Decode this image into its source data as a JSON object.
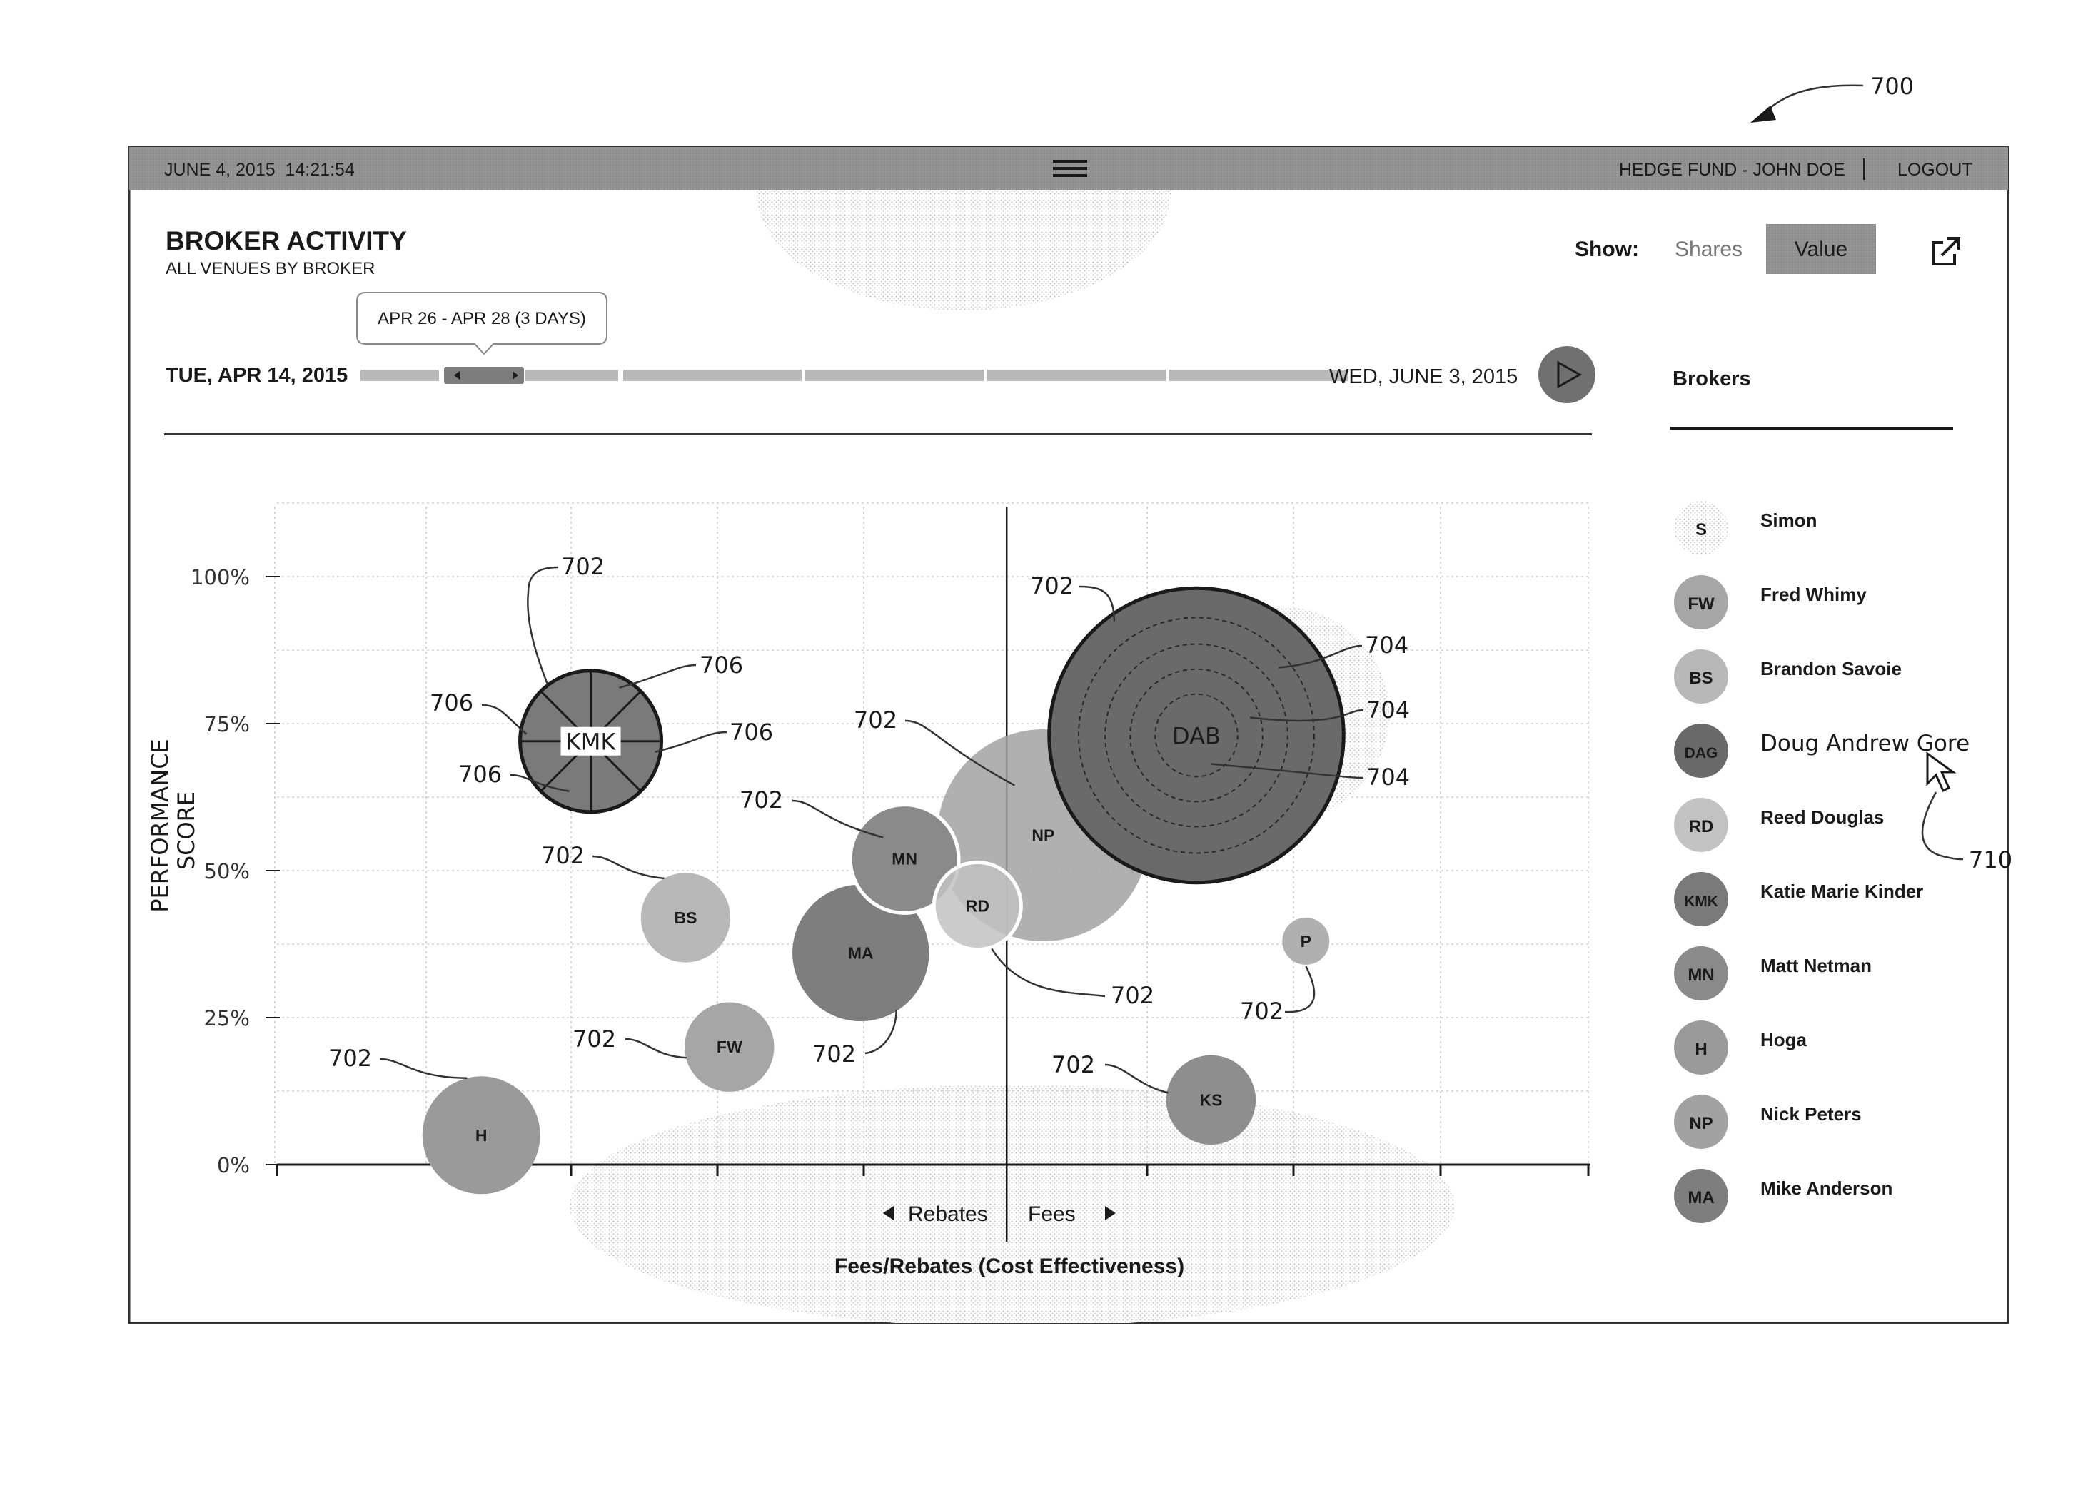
{
  "figure_ref": "700",
  "cursor_ref": "710",
  "topbar": {
    "datetime": "JUNE 4, 2015  14:21:54",
    "account": "HEDGE FUND - JOHN DOE",
    "logout": "LOGOUT",
    "menu_icon": "hamburger-icon"
  },
  "header": {
    "title": "BROKER ACTIVITY",
    "subtitle": "ALL VENUES BY BROKER",
    "show_label": "Show:",
    "toggle_shares": "Shares",
    "toggle_value": "Value",
    "selected_toggle": "Value",
    "export_icon": "external-link-icon"
  },
  "timeline": {
    "start_label": "TUE, APR 14, 2015",
    "end_label": "WED, JUNE 3, 2015",
    "tooltip": "APR 26 - APR 28 (3 DAYS)",
    "play_icon": "play-icon"
  },
  "sidebar": {
    "title": "Brokers",
    "brokers": [
      {
        "initials": "S",
        "name": "Simon",
        "shade": "#f0f0f0"
      },
      {
        "initials": "FW",
        "name": "Fred Whimy",
        "shade": "#a6a6a6"
      },
      {
        "initials": "BS",
        "name": "Brandon Savoie",
        "shade": "#b8b8b8"
      },
      {
        "initials": "DAG",
        "name": "Doug Andrew Gore",
        "shade": "#6a6a6a"
      },
      {
        "initials": "RD",
        "name": "Reed Douglas",
        "shade": "#c2c2c2"
      },
      {
        "initials": "KMK",
        "name": "Katie Marie Kinder",
        "shade": "#7a7a7a"
      },
      {
        "initials": "MN",
        "name": "Matt Netman",
        "shade": "#8a8a8a"
      },
      {
        "initials": "H",
        "name": "Hoga",
        "shade": "#9a9a9a"
      },
      {
        "initials": "NP",
        "name": "Nick Peters",
        "shade": "#a2a2a2"
      },
      {
        "initials": "MA",
        "name": "Mike Anderson",
        "shade": "#7e7e7e"
      }
    ]
  },
  "chart_data": {
    "type": "scatter",
    "ylabel_line1": "PERFORMANCE",
    "ylabel_line2": "SCORE",
    "xlabel": "Fees/Rebates (Cost Effectiveness)",
    "x_left_label": "Rebates",
    "x_right_label": "Fees",
    "yticks": [
      "0%",
      "25%",
      "50%",
      "75%",
      "100%"
    ],
    "y_tick_values": [
      0,
      25,
      50,
      75,
      100
    ],
    "ylim": [
      0,
      100
    ],
    "xlim": [
      -5,
      4
    ],
    "grid": true,
    "bubbles": [
      {
        "label": "H",
        "x": -3.6,
        "y": 5,
        "size": 0.5,
        "shade": "#9a9a9a"
      },
      {
        "label": "FW",
        "x": -1.9,
        "y": 20,
        "size": 0.38,
        "shade": "#a6a6a6"
      },
      {
        "label": "BS",
        "x": -2.2,
        "y": 42,
        "size": 0.38,
        "shade": "#b8b8b8"
      },
      {
        "label": "MA",
        "x": -1.0,
        "y": 36,
        "size": 0.58,
        "shade": "#7e7e7e"
      },
      {
        "label": "MN",
        "x": -0.7,
        "y": 52,
        "size": 0.46,
        "shade": "#8a8a8a"
      },
      {
        "label": "RD",
        "x": -0.2,
        "y": 44,
        "size": 0.37,
        "shade": "#c2c2c2"
      },
      {
        "label": "NP",
        "x": 0.25,
        "y": 56,
        "size": 0.9,
        "shade": "#a2a2a2"
      },
      {
        "label": "KMK",
        "x": -2.85,
        "y": 72,
        "size": 0.6,
        "shade": "#7a7a7a"
      },
      {
        "label": "DAB",
        "x": 1.3,
        "y": 73,
        "size": 1.25,
        "shade": "#6a6a6a"
      },
      {
        "label": "P",
        "x": 2.05,
        "y": 38,
        "size": 0.2,
        "shade": "#b0b0b0"
      },
      {
        "label": "KS",
        "x": 1.4,
        "y": 11,
        "size": 0.38,
        "shade": "#8e8e8e"
      }
    ],
    "ref_702": "702",
    "ref_704": "704",
    "ref_706": "706"
  }
}
